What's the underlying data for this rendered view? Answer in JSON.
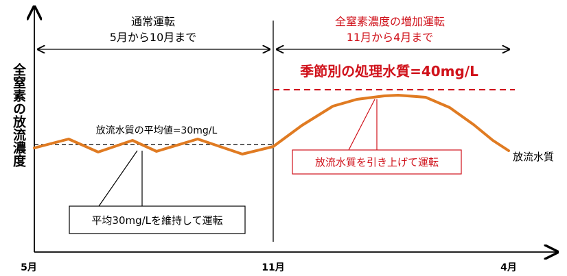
{
  "y_axis_label": "全窒素の放流濃度",
  "x_axis": {
    "ticks": [
      "5月",
      "11月",
      "4月"
    ]
  },
  "periods": {
    "normal": {
      "title": "通常運転",
      "range": "5月から10月まで"
    },
    "increase": {
      "title": "全窒素濃度の増加運転",
      "range": "11月から4月まで"
    }
  },
  "annotations": {
    "average": "放流水質の平均値=30mg/L",
    "seasonal_target": "季節別の処理水質=40mg/L",
    "maintain": "平均30mg/Lを維持して運転",
    "raise": "放流水質を引き上げて運転",
    "series_label": "放流水質"
  },
  "colors": {
    "line": "#e07b22",
    "red": "#d0121b",
    "black": "#000000"
  }
}
